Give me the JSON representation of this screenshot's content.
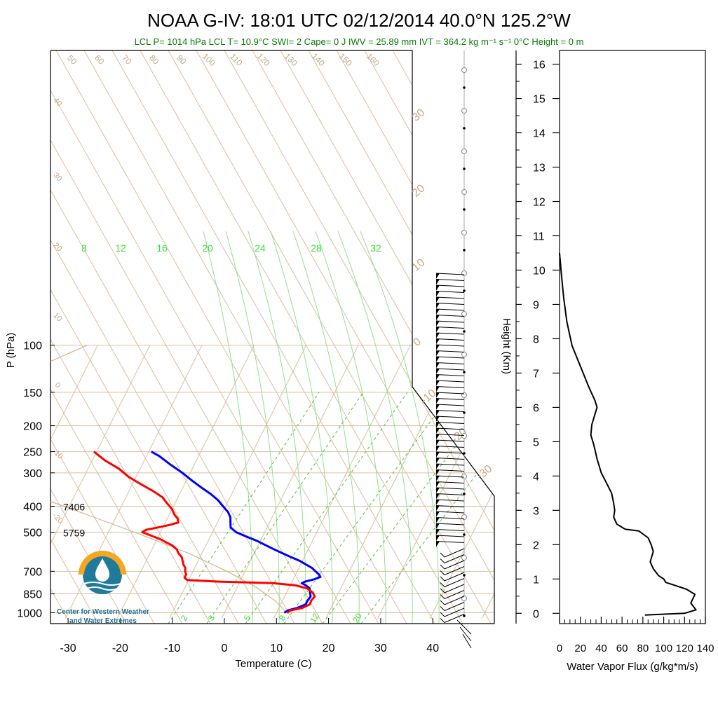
{
  "chart_data": [
    {
      "type": "skew-t",
      "title": "NOAA G-IV: 18:01 UTC 02/12/2014  40.0°N 125.2°W",
      "subtitle": "LCL P= 1014 hPa  LCL T= 10.9°C  SWI= 2  Cape= 0 J  IWV = 25.89 mm  IVT = 364.2 kg m⁻¹ s⁻¹  0°C Height = 0 m",
      "xlabel": "Temperature (C)",
      "ylabel": "P (hPa)",
      "xlim": [
        -34,
        40
      ],
      "ylim_hpa": [
        1000,
        100
      ],
      "xticks": [
        "-30",
        "-20",
        "-10",
        "0",
        "10",
        "20",
        "30",
        "40"
      ],
      "yticks": [
        {
          "p": 100,
          "label": "100"
        },
        {
          "p": 150,
          "label": "150"
        },
        {
          "p": 200,
          "label": "200"
        },
        {
          "p": 250,
          "label": "250"
        },
        {
          "p": 300,
          "label": "300"
        },
        {
          "p": 400,
          "label": "400"
        },
        {
          "p": 500,
          "label": "500"
        },
        {
          "p": 700,
          "label": "700"
        },
        {
          "p": 850,
          "label": "850"
        },
        {
          "p": 1000,
          "label": "1000"
        }
      ],
      "height_annotations": [
        {
          "p": 400,
          "label": "7406"
        },
        {
          "p": 500,
          "label": "5759"
        }
      ],
      "mixing_ratio_labels_top": [
        "8",
        "12",
        "16",
        "20",
        "24",
        "28",
        "32"
      ],
      "mixing_ratio_labels_bottom": [
        "2",
        "3",
        "5",
        "8",
        "12",
        "20"
      ],
      "dry_adiabat_labels_top": [
        "50",
        "60",
        "70",
        "80",
        "90",
        "100",
        "110",
        "120",
        "130",
        "140",
        "150",
        "160"
      ],
      "isotherm_labels_left": [
        "40",
        "30",
        "20",
        "10",
        "0",
        "-10",
        "-20"
      ],
      "isotherm_labels_right": [
        "30",
        "20",
        "10",
        "0",
        "-10",
        "-20",
        "-30"
      ],
      "series": [
        {
          "name": "temperature",
          "color": "#ff0000",
          "points": [
            [
              1000,
              12.0
            ],
            [
              980,
              12.5
            ],
            [
              960,
              14.5
            ],
            [
              930,
              15.6
            ],
            [
              900,
              15.5
            ],
            [
              870,
              15.8
            ],
            [
              840,
              15.0
            ],
            [
              810,
              13.5
            ],
            [
              790,
              11.0
            ],
            [
              775,
              6.5
            ],
            [
              765,
              -4.0
            ],
            [
              755,
              -10.2
            ],
            [
              740,
              -11.0
            ],
            [
              720,
              -11.0
            ],
            [
              700,
              -11.5
            ],
            [
              680,
              -11.8
            ],
            [
              660,
              -12.5
            ],
            [
              640,
              -13.0
            ],
            [
              620,
              -13.5
            ],
            [
              600,
              -14.5
            ],
            [
              580,
              -15.2
            ],
            [
              560,
              -16.5
            ],
            [
              545,
              -18.0
            ],
            [
              530,
              -19.5
            ],
            [
              515,
              -21.5
            ],
            [
              500,
              -23.5
            ],
            [
              490,
              -23.0
            ],
            [
              480,
              -21.0
            ],
            [
              470,
              -19.0
            ],
            [
              460,
              -17.5
            ],
            [
              445,
              -18.0
            ],
            [
              430,
              -19.0
            ],
            [
              410,
              -20.0
            ],
            [
              390,
              -21.5
            ],
            [
              370,
              -23.0
            ],
            [
              350,
              -25.5
            ],
            [
              330,
              -28.5
            ],
            [
              310,
              -31.5
            ],
            [
              290,
              -34.0
            ],
            [
              270,
              -37.5
            ],
            [
              250,
              -40.5
            ]
          ]
        },
        {
          "name": "dewpoint",
          "color": "#0000ff",
          "points": [
            [
              1000,
              11.5
            ],
            [
              980,
              12.0
            ],
            [
              960,
              13.5
            ],
            [
              930,
              14.8
            ],
            [
              900,
              14.8
            ],
            [
              870,
              15.0
            ],
            [
              840,
              14.5
            ],
            [
              810,
              14.0
            ],
            [
              790,
              13.0
            ],
            [
              775,
              12.0
            ],
            [
              765,
              12.5
            ],
            [
              750,
              14.0
            ],
            [
              735,
              15.0
            ],
            [
              720,
              14.5
            ],
            [
              700,
              13.5
            ],
            [
              680,
              12.5
            ],
            [
              660,
              11.0
            ],
            [
              640,
              9.5
            ],
            [
              620,
              7.5
            ],
            [
              600,
              5.5
            ],
            [
              580,
              3.5
            ],
            [
              560,
              1.5
            ],
            [
              540,
              -0.5
            ],
            [
              520,
              -3.0
            ],
            [
              500,
              -5.5
            ],
            [
              480,
              -7.0
            ],
            [
              460,
              -7.5
            ],
            [
              440,
              -8.0
            ],
            [
              420,
              -9.0
            ],
            [
              400,
              -10.5
            ],
            [
              380,
              -12.0
            ],
            [
              360,
              -14.0
            ],
            [
              340,
              -16.5
            ],
            [
              320,
              -19.0
            ],
            [
              300,
              -21.5
            ],
            [
              280,
              -24.5
            ],
            [
              260,
              -27.5
            ],
            [
              250,
              -29.5
            ]
          ]
        },
        {
          "name": "parcel",
          "color": "#d2b48c",
          "points": [
            [
              1000,
              12.0
            ],
            [
              900,
              8.5
            ],
            [
              800,
              3.5
            ],
            [
              700,
              -3.5
            ],
            [
              600,
              -12.5
            ],
            [
              500,
              -25.0
            ],
            [
              400,
              -41.0
            ],
            [
              300,
              -63.0
            ],
            [
              230,
              -85.0
            ],
            [
              100,
              -52.0
            ]
          ]
        }
      ],
      "wind_barbs_present": true
    },
    {
      "type": "line",
      "title": "",
      "xlabel": "Water Vapor Flux (g/kg*m/s)",
      "ylabel": "Height (Km)",
      "xlim": [
        0,
        140
      ],
      "ylim": [
        -0.3,
        16.4
      ],
      "xticks": [
        "0",
        "20",
        "40",
        "60",
        "80",
        "100",
        "120",
        "140"
      ],
      "yticks": [
        "0",
        "1",
        "2",
        "3",
        "4",
        "5",
        "6",
        "7",
        "8",
        "9",
        "10",
        "11",
        "12",
        "13",
        "14",
        "15",
        "16"
      ],
      "series": [
        {
          "name": "water vapor flux",
          "color": "#000000",
          "points": [
            [
              82,
              -0.05
            ],
            [
              120,
              0.0
            ],
            [
              131,
              0.1
            ],
            [
              126,
              0.3
            ],
            [
              130,
              0.55
            ],
            [
              122,
              0.7
            ],
            [
              112,
              0.8
            ],
            [
              102,
              0.9
            ],
            [
              100,
              1.0
            ],
            [
              95,
              1.1
            ],
            [
              90,
              1.3
            ],
            [
              87,
              1.5
            ],
            [
              90,
              1.8
            ],
            [
              88,
              2.0
            ],
            [
              85,
              2.2
            ],
            [
              76,
              2.4
            ],
            [
              63,
              2.45
            ],
            [
              55,
              2.6
            ],
            [
              52,
              2.8
            ],
            [
              53,
              3.0
            ],
            [
              52,
              3.2
            ],
            [
              50,
              3.5
            ],
            [
              45,
              3.8
            ],
            [
              40,
              4.1
            ],
            [
              36,
              4.5
            ],
            [
              33,
              4.9
            ],
            [
              30,
              5.2
            ],
            [
              31,
              5.5
            ],
            [
              34,
              5.8
            ],
            [
              36,
              6.0
            ],
            [
              34,
              6.2
            ],
            [
              28,
              6.6
            ],
            [
              20,
              7.2
            ],
            [
              12,
              7.8
            ],
            [
              7,
              8.5
            ],
            [
              4,
              9.2
            ],
            [
              2,
              9.8
            ],
            [
              0,
              10.5
            ]
          ]
        }
      ]
    }
  ],
  "logo": {
    "name": "Center for Western Weather and Water Extremes",
    "line1": "Center for Western Weather",
    "line2": "and Water Extremes",
    "colors": {
      "sun": "#f5a623",
      "water": "#1f7a9c"
    }
  }
}
